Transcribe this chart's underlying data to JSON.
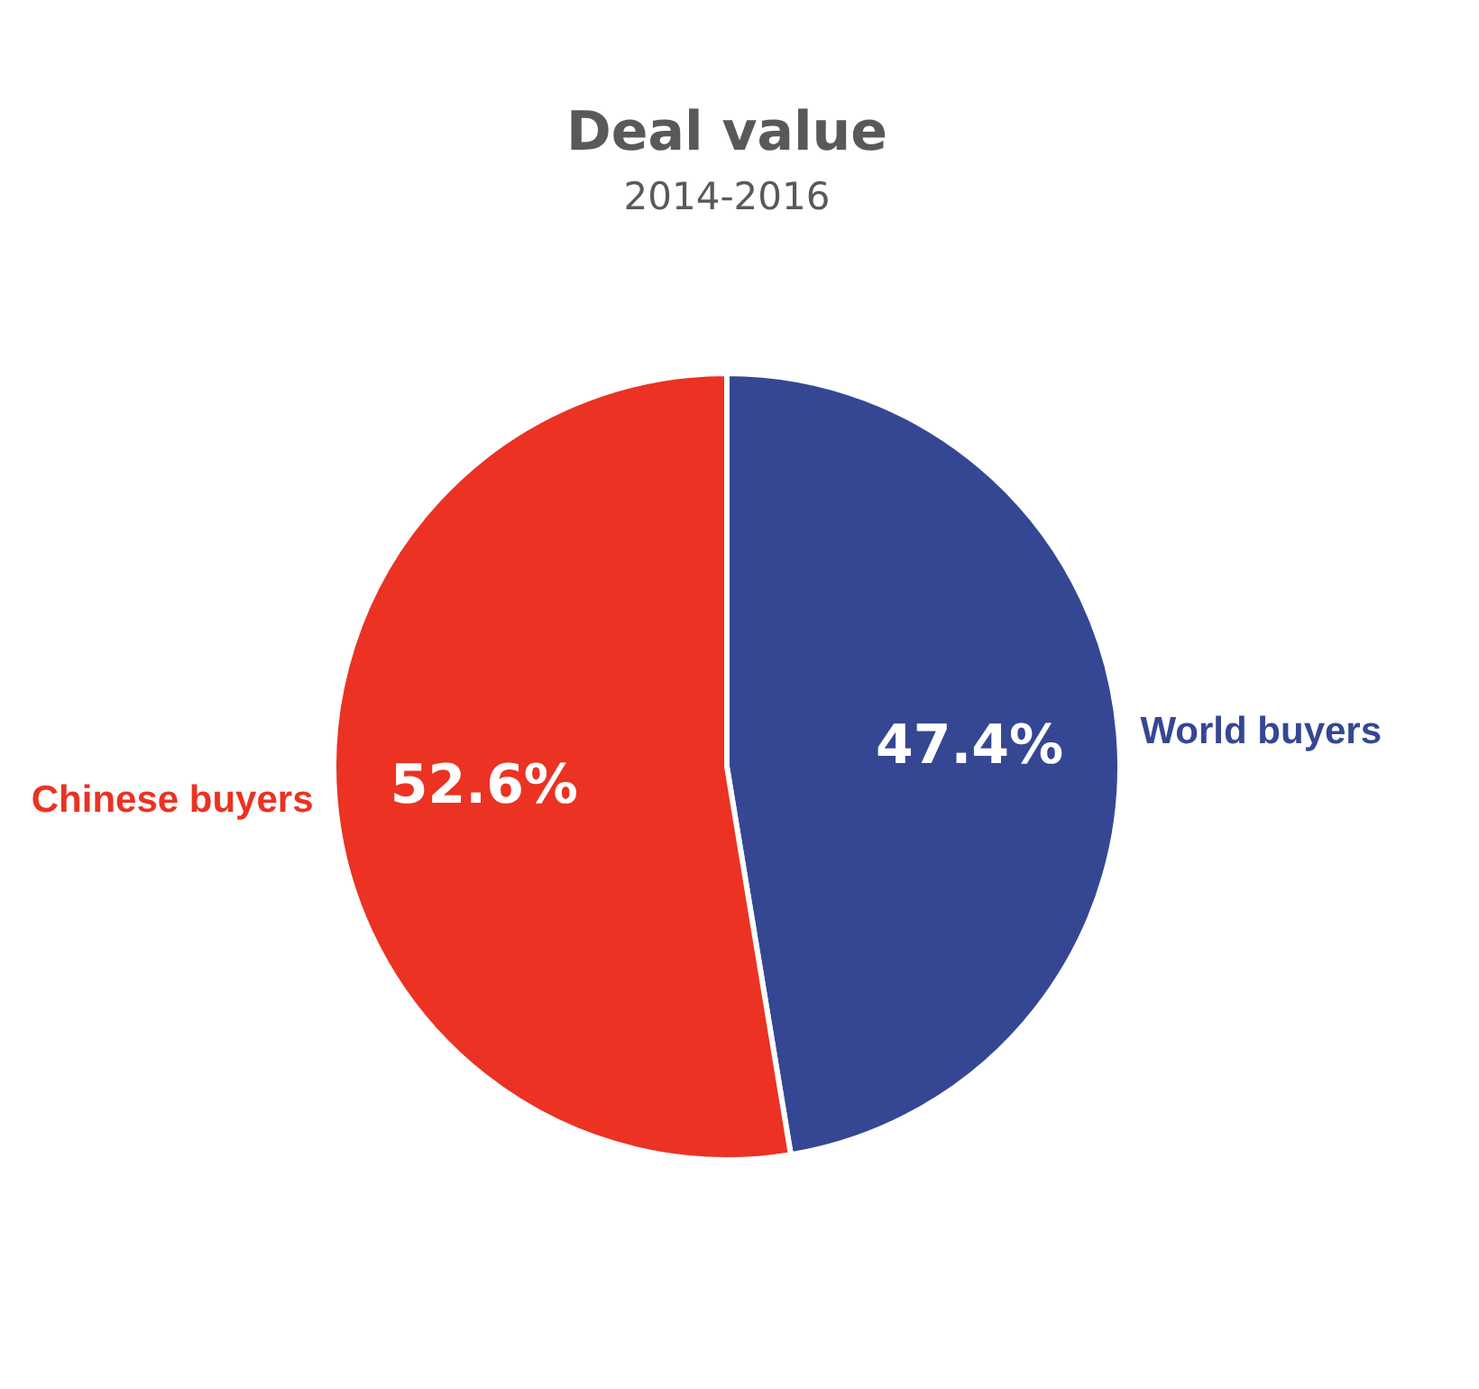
{
  "chart_data": {
    "type": "pie",
    "title": "Deal value",
    "subtitle": "2014-2016",
    "categories": [
      "World buyers",
      "Chinese buyers"
    ],
    "values": [
      47.4,
      52.6
    ],
    "colors": [
      "#354793",
      "#eb3223"
    ],
    "value_labels": [
      "47.4%",
      "52.6%"
    ],
    "legend": false
  }
}
